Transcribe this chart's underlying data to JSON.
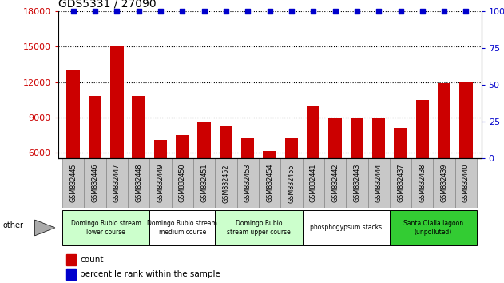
{
  "title": "GDS5331 / 27090",
  "samples": [
    "GSM832445",
    "GSM832446",
    "GSM832447",
    "GSM832448",
    "GSM832449",
    "GSM832450",
    "GSM832451",
    "GSM832452",
    "GSM832453",
    "GSM832454",
    "GSM832455",
    "GSM832441",
    "GSM832442",
    "GSM832443",
    "GSM832444",
    "GSM832437",
    "GSM832438",
    "GSM832439",
    "GSM832440"
  ],
  "counts": [
    13000,
    10800,
    15100,
    10800,
    7100,
    7500,
    8600,
    8200,
    7300,
    6100,
    7200,
    10000,
    8900,
    8900,
    8900,
    8100,
    10500,
    11900,
    12000
  ],
  "percentiles": [
    100,
    100,
    100,
    100,
    100,
    100,
    100,
    100,
    100,
    100,
    100,
    100,
    100,
    100,
    100,
    100,
    100,
    100,
    100
  ],
  "bar_color": "#cc0000",
  "dot_color": "#0000cc",
  "ylim_left": [
    5500,
    18000
  ],
  "ylim_right": [
    0,
    100
  ],
  "yticks_left": [
    6000,
    9000,
    12000,
    15000,
    18000
  ],
  "yticks_right": [
    0,
    25,
    50,
    75,
    100
  ],
  "groups": [
    {
      "label": "Domingo Rubio stream\nlower course",
      "start": 0,
      "end": 4,
      "color": "#ccffcc"
    },
    {
      "label": "Domingo Rubio stream\nmedium course",
      "start": 4,
      "end": 7,
      "color": "#ffffff"
    },
    {
      "label": "Domingo Rubio\nstream upper course",
      "start": 7,
      "end": 11,
      "color": "#ccffcc"
    },
    {
      "label": "phosphogypsum stacks",
      "start": 11,
      "end": 15,
      "color": "#ffffff"
    },
    {
      "label": "Santa Olalla lagoon\n(unpolluted)",
      "start": 15,
      "end": 19,
      "color": "#33cc33"
    }
  ],
  "other_label": "other",
  "legend_count_label": "count",
  "legend_pct_label": "percentile rank within the sample",
  "tick_bg_color": "#c8c8c8",
  "tick_border_color": "#888888"
}
